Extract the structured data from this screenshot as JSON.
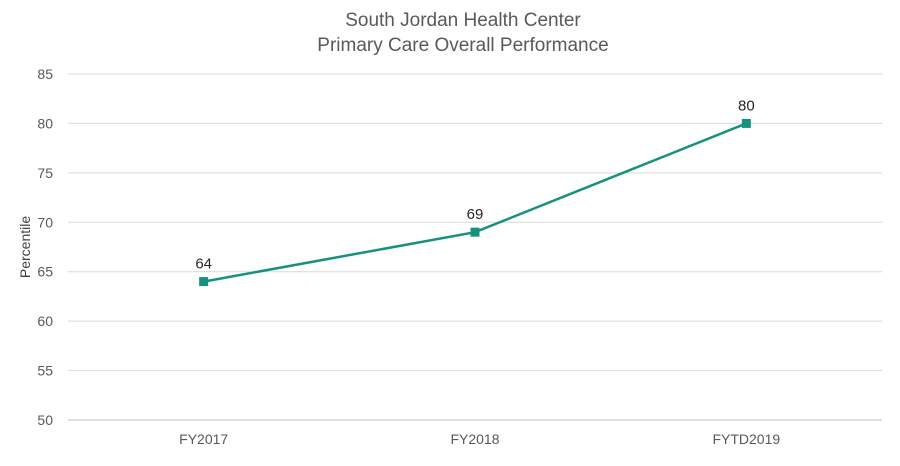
{
  "chart_data": {
    "type": "line",
    "title": [
      "South Jordan Health Center",
      "Primary Care Overall Performance"
    ],
    "xlabel": "",
    "ylabel": "Percentile",
    "categories": [
      "FY2017",
      "FY2018",
      "FYTD2019"
    ],
    "series": [
      {
        "name": "Percentile",
        "values": [
          64,
          69,
          80
        ],
        "labels": [
          "64",
          "69",
          "80"
        ]
      }
    ],
    "ylim": [
      50,
      85
    ],
    "yticks": [
      50,
      55,
      60,
      65,
      70,
      75,
      80,
      85
    ],
    "ytick_labels": [
      "50",
      "55",
      "60",
      "65",
      "70",
      "75",
      "80",
      "85"
    ],
    "grid": true,
    "line_color": "#16917E"
  }
}
